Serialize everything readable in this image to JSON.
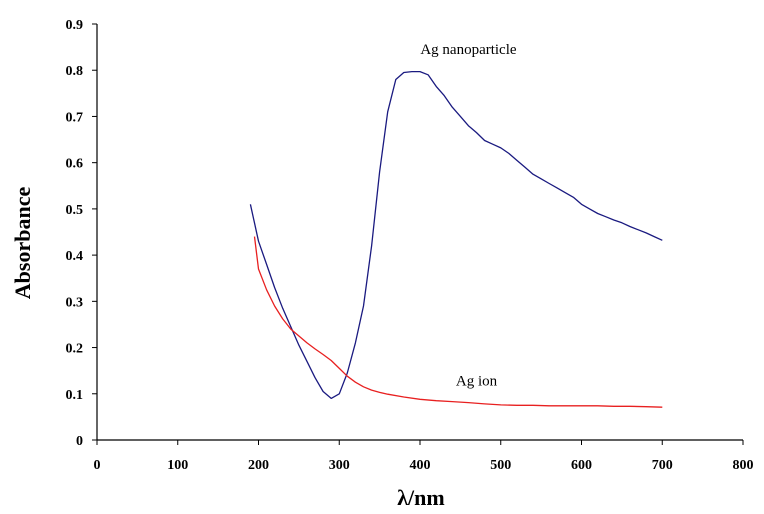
{
  "chart_data": {
    "type": "line",
    "title": "",
    "xlabel": "λ/nm",
    "ylabel": "Absorbance",
    "xlim": [
      0,
      800
    ],
    "ylim": [
      0,
      0.9
    ],
    "xticks": [
      0,
      100,
      200,
      300,
      400,
      500,
      600,
      700,
      800
    ],
    "yticks": [
      0,
      0.1,
      0.2,
      0.3,
      0.4,
      0.5,
      0.6,
      0.7,
      0.8,
      0.9
    ],
    "xtick_labels": [
      "0",
      "100",
      "200",
      "300",
      "400",
      "500",
      "600",
      "700",
      "800"
    ],
    "ytick_labels": [
      "0",
      "0.1",
      "0.2",
      "0.3",
      "0.4",
      "0.5",
      "0.6",
      "0.7",
      "0.8",
      "0.9"
    ],
    "grid": false,
    "legend": "none",
    "series": [
      {
        "name": "Ag nanoparticle",
        "color": "#1a1a80",
        "x": [
          190,
          200,
          210,
          220,
          230,
          240,
          250,
          260,
          270,
          280,
          290,
          300,
          310,
          320,
          330,
          340,
          350,
          360,
          370,
          380,
          390,
          400,
          410,
          420,
          430,
          440,
          450,
          460,
          470,
          480,
          490,
          500,
          510,
          520,
          530,
          540,
          550,
          560,
          570,
          580,
          590,
          600,
          610,
          620,
          630,
          640,
          650,
          660,
          670,
          680,
          690,
          700
        ],
        "y": [
          0.51,
          0.43,
          0.38,
          0.33,
          0.285,
          0.245,
          0.205,
          0.17,
          0.135,
          0.105,
          0.09,
          0.1,
          0.145,
          0.21,
          0.29,
          0.42,
          0.58,
          0.71,
          0.78,
          0.795,
          0.797,
          0.797,
          0.79,
          0.765,
          0.745,
          0.72,
          0.7,
          0.68,
          0.665,
          0.648,
          0.64,
          0.632,
          0.62,
          0.605,
          0.59,
          0.575,
          0.565,
          0.555,
          0.545,
          0.535,
          0.525,
          0.51,
          0.5,
          0.49,
          0.483,
          0.476,
          0.47,
          0.462,
          0.455,
          0.448,
          0.44,
          0.432
        ]
      },
      {
        "name": "Ag ion",
        "color": "#e82020",
        "x": [
          195,
          200,
          210,
          220,
          230,
          240,
          250,
          260,
          270,
          280,
          290,
          300,
          310,
          320,
          330,
          340,
          350,
          360,
          380,
          400,
          420,
          440,
          460,
          480,
          500,
          520,
          540,
          560,
          580,
          600,
          620,
          640,
          660,
          680,
          700
        ],
        "y": [
          0.44,
          0.37,
          0.325,
          0.29,
          0.262,
          0.24,
          0.225,
          0.21,
          0.197,
          0.185,
          0.172,
          0.155,
          0.138,
          0.125,
          0.115,
          0.108,
          0.103,
          0.099,
          0.093,
          0.088,
          0.085,
          0.083,
          0.081,
          0.078,
          0.076,
          0.075,
          0.075,
          0.074,
          0.074,
          0.074,
          0.074,
          0.073,
          0.073,
          0.072,
          0.071
        ]
      }
    ],
    "annotations": [
      {
        "text": "Ag nanoparticle",
        "x": 460,
        "y": 0.835,
        "series": "Ag nanoparticle"
      },
      {
        "text": "Ag ion",
        "x": 470,
        "y": 0.118,
        "series": "Ag ion"
      }
    ]
  }
}
